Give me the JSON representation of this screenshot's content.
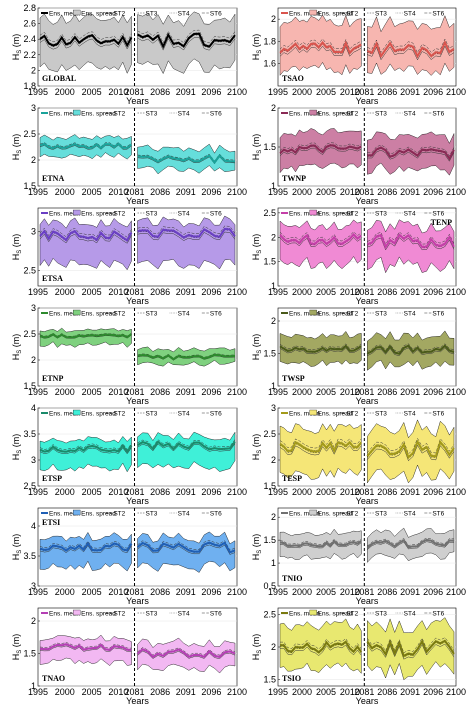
{
  "figure": {
    "legend_labels": [
      "Ens. mean",
      "Ens. spread",
      "ST2",
      "ST3",
      "ST4",
      "ST6"
    ],
    "ylabel_main": "H",
    "ylabel_sub": "S",
    "ylabel_unit": " (m)",
    "xlabel": "Years",
    "x_ticks_hist": [
      "1995",
      "2000",
      "2005",
      "2010"
    ],
    "x_ticks_fut": [
      "2081",
      "2086",
      "2091",
      "2096",
      "2100"
    ],
    "x_ticks_fut_right": [
      "2081",
      "2086",
      "2091",
      "2096",
      "2100"
    ]
  },
  "chart_data": [
    {
      "type": "line",
      "region": "GLOBAL",
      "color": "#000000",
      "fill": "#c9c9c9",
      "ylim": [
        1.8,
        2.8
      ],
      "yticks": [
        "1.8",
        "2",
        "2.2",
        "2.4",
        "2.6",
        "2.8"
      ],
      "label_pos": "bottom-left",
      "mean_hist": 2.38,
      "mean_fut": 2.37,
      "upper_hist": 2.66,
      "upper_fut": 2.64,
      "lower_hist": 2.04,
      "lower_fut": 2.03
    },
    {
      "type": "line",
      "region": "TSAO",
      "color": "#d9544d",
      "fill": "#f7b6b0",
      "ylim": [
        1.4,
        2.1
      ],
      "yticks": [
        "1.6",
        "1.8",
        "2"
      ],
      "label_pos": "bottom-left",
      "mean_hist": 1.74,
      "mean_fut": 1.73,
      "upper_hist": 1.98,
      "upper_fut": 1.96,
      "lower_hist": 1.55,
      "lower_fut": 1.55
    },
    {
      "type": "line",
      "region": "ETNA",
      "color": "#1aa39a",
      "fill": "#66dedb",
      "ylim": [
        1.5,
        3.0
      ],
      "yticks": [
        "1.5",
        "2",
        "2.5",
        "3"
      ],
      "label_pos": "bottom-left",
      "mean_hist": 2.27,
      "mean_fut": 2.02,
      "upper_hist": 2.44,
      "upper_fut": 2.22,
      "lower_hist": 2.08,
      "lower_fut": 1.82
    },
    {
      "type": "line",
      "region": "TWNP",
      "color": "#8a2a55",
      "fill": "#cc7fa4",
      "ylim": [
        1.0,
        2.0
      ],
      "yticks": [
        "1",
        "1.5",
        "2"
      ],
      "label_pos": "bottom-left",
      "mean_hist": 1.47,
      "mean_fut": 1.42,
      "upper_hist": 1.68,
      "upper_fut": 1.63,
      "lower_hist": 1.24,
      "lower_fut": 1.2
    },
    {
      "type": "line",
      "region": "ETSA",
      "color": "#6a3fc4",
      "fill": "#b69ae8",
      "ylim": [
        2.3,
        3.3
      ],
      "yticks": [
        "2.5",
        "3"
      ],
      "label_pos": "bottom-left",
      "mean_hist": 2.94,
      "mean_fut": 2.95,
      "upper_hist": 3.1,
      "upper_fut": 3.1,
      "lower_hist": 2.58,
      "lower_fut": 2.56
    },
    {
      "type": "line",
      "region": "TENP",
      "color": "#c43fa8",
      "fill": "#f08ad4",
      "ylim": [
        1.0,
        2.6
      ],
      "yticks": [
        "1",
        "1.5",
        "2",
        "2.5"
      ],
      "label_pos": "top-right",
      "mean_hist": 1.96,
      "mean_fut": 1.93,
      "upper_hist": 2.26,
      "upper_fut": 2.24,
      "lower_hist": 1.48,
      "lower_fut": 1.44
    },
    {
      "type": "line",
      "region": "ETNP",
      "color": "#2d8a2d",
      "fill": "#7fd17f",
      "ylim": [
        1.5,
        3.0
      ],
      "yticks": [
        "1.5",
        "2",
        "2.5",
        "3"
      ],
      "label_pos": "bottom-left",
      "mean_hist": 2.47,
      "mean_fut": 2.06,
      "upper_hist": 2.58,
      "upper_fut": 2.2,
      "lower_hist": 2.3,
      "lower_fut": 1.92
    },
    {
      "type": "line",
      "region": "TWSP",
      "color": "#4a5a1a",
      "fill": "#a3a862",
      "ylim": [
        1.0,
        2.2
      ],
      "yticks": [
        "1",
        "1.5",
        "2"
      ],
      "label_pos": "bottom-left",
      "mean_hist": 1.57,
      "mean_fut": 1.55,
      "upper_hist": 1.78,
      "upper_fut": 1.76,
      "lower_hist": 1.36,
      "lower_fut": 1.32
    },
    {
      "type": "line",
      "region": "ETSP",
      "color": "#1a8a6a",
      "fill": "#3ff0d8",
      "ylim": [
        2.5,
        4.0
      ],
      "yticks": [
        "2.5",
        "3",
        "3.5",
        "4"
      ],
      "label_pos": "bottom-left",
      "mean_hist": 3.22,
      "mean_fut": 3.26,
      "upper_hist": 3.4,
      "upper_fut": 3.44,
      "lower_hist": 2.86,
      "lower_fut": 2.86
    },
    {
      "type": "line",
      "region": "TESP",
      "color": "#a39a1a",
      "fill": "#f5e677",
      "ylim": [
        1.5,
        3.0
      ],
      "yticks": [
        "1.5",
        "2",
        "2.5",
        "3"
      ],
      "label_pos": "bottom-left",
      "mean_hist": 2.24,
      "mean_fut": 2.2,
      "upper_hist": 2.6,
      "upper_fut": 2.6,
      "lower_hist": 1.72,
      "lower_fut": 1.72
    },
    {
      "type": "line",
      "region": "ETSI",
      "color": "#1f5fb5",
      "fill": "#6fb0f0",
      "ylim": [
        3.0,
        4.3
      ],
      "yticks": [
        "3",
        "3.5",
        "4"
      ],
      "label_pos": "top-left",
      "mean_hist": 3.65,
      "mean_fut": 3.64,
      "upper_hist": 3.82,
      "upper_fut": 3.8,
      "lower_hist": 3.33,
      "lower_fut": 3.32
    },
    {
      "type": "line",
      "region": "TNIO",
      "color": "#707070",
      "fill": "#cfcfcf",
      "ylim": [
        0.5,
        2.2
      ],
      "yticks": [
        "0.5",
        "1",
        "1.5",
        "2"
      ],
      "label_pos": "bottom-left",
      "mean_hist": 1.42,
      "mean_fut": 1.42,
      "upper_hist": 1.66,
      "upper_fut": 1.66,
      "lower_hist": 1.14,
      "lower_fut": 1.14
    },
    {
      "type": "line",
      "region": "TNAO",
      "color": "#b43fb4",
      "fill": "#f2b8f2",
      "ylim": [
        1.0,
        2.2
      ],
      "yticks": [
        "1",
        "1.5",
        "2"
      ],
      "label_pos": "bottom-left",
      "mean_hist": 1.6,
      "mean_fut": 1.5,
      "upper_hist": 1.74,
      "upper_fut": 1.66,
      "lower_hist": 1.38,
      "lower_fut": 1.28
    },
    {
      "type": "line",
      "region": "TSIO",
      "color": "#7a7a10",
      "fill": "#e8e870",
      "ylim": [
        1.4,
        2.6
      ],
      "yticks": [
        "1.5",
        "2",
        "2.5"
      ],
      "label_pos": "bottom-left",
      "mean_hist": 2.0,
      "mean_fut": 1.98,
      "upper_hist": 2.34,
      "upper_fut": 2.32,
      "lower_hist": 1.68,
      "lower_fut": 1.64
    }
  ]
}
